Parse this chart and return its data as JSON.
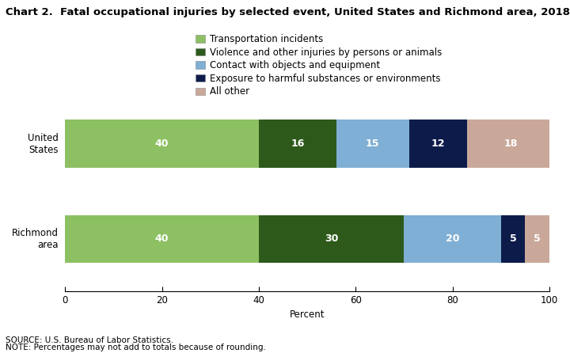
{
  "title": "Chart 2.  Fatal occupational injuries by selected event, United States and Richmond area, 2018",
  "categories": [
    "Richmond\narea",
    "United\nStates"
  ],
  "segments": [
    {
      "label": "Transportation incidents",
      "color": "#8dc063",
      "values": [
        40,
        40
      ]
    },
    {
      "label": "Violence and other injuries by persons or animals",
      "color": "#2d5a1b",
      "values": [
        30,
        16
      ]
    },
    {
      "label": "Contact with objects and equipment",
      "color": "#7fafd4",
      "values": [
        20,
        15
      ]
    },
    {
      "label": "Exposure to harmful substances or environments",
      "color": "#0d1b4b",
      "values": [
        5,
        12
      ]
    },
    {
      "label": "All other",
      "color": "#c9a89a",
      "values": [
        5,
        18
      ]
    }
  ],
  "xlim": [
    0,
    100
  ],
  "xticks": [
    0,
    20,
    40,
    60,
    80,
    100
  ],
  "xlabel": "Percent",
  "source_text": "SOURCE: U.S. Bureau of Labor Statistics.",
  "note_text": "NOTE: Percentages may not add to totals because of rounding.",
  "bar_height": 0.5,
  "label_fontsize": 9,
  "title_fontsize": 9.5,
  "tick_fontsize": 8.5,
  "legend_fontsize": 8.5,
  "source_fontsize": 7.5,
  "ylim_bottom": -0.55,
  "ylim_top": 2.2
}
